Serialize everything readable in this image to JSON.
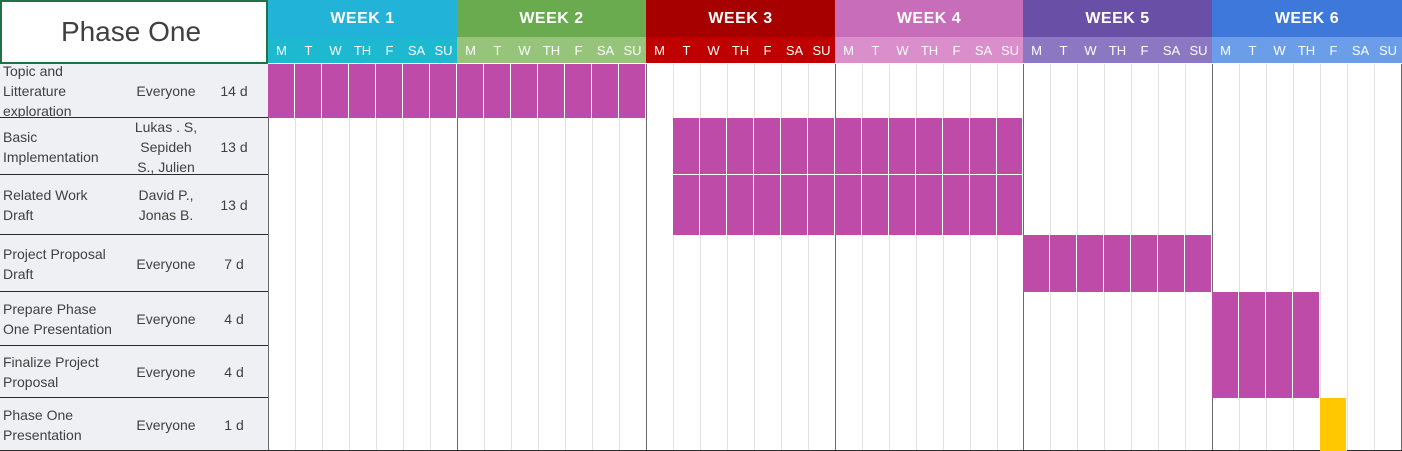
{
  "title": "Phase One",
  "colors": {
    "bar": "#BE4BA7",
    "milestone": "#FFC800",
    "panel_bg": "#EEF0F3",
    "border": "#2B2B2B"
  },
  "weeks": [
    {
      "label": "WEEK 1",
      "color": "#22B4D8",
      "day_color": "#1EB9D0"
    },
    {
      "label": "WEEK 2",
      "color": "#6AAB4F",
      "day_color": "#95C47A"
    },
    {
      "label": "WEEK 3",
      "color": "#A60000",
      "day_color": "#C00000"
    },
    {
      "label": "WEEK 4",
      "color": "#C86DBA",
      "day_color": "#DA8FCC"
    },
    {
      "label": "WEEK 5",
      "color": "#6A4FA6",
      "day_color": "#8C78C2"
    },
    {
      "label": "WEEK 6",
      "color": "#3D78DA",
      "day_color": "#6B9DE8"
    }
  ],
  "days": [
    "M",
    "T",
    "W",
    "TH",
    "F",
    "SA",
    "SU"
  ],
  "tasks": [
    {
      "name": "  Topic and\nLitterature\nexploration",
      "assignee": "Everyone",
      "duration": "14 d",
      "start_day": 1,
      "days": 14,
      "type": "bar"
    },
    {
      "name": "Basic\nImplementation",
      "assignee": "Lukas . S,\nSepideh\nS., Julien",
      "duration": "13 d",
      "start_day": 16,
      "days": 13,
      "type": "bar"
    },
    {
      "name": "Related Work\nDraft",
      "assignee": "David P.,\nJonas B.",
      "duration": "13 d",
      "start_day": 16,
      "days": 13,
      "type": "bar"
    },
    {
      "name": " Project Proposal\nDraft",
      "assignee": "Everyone",
      "duration": "7 d",
      "start_day": 29,
      "days": 7,
      "type": "bar"
    },
    {
      "name": "  Prepare Phase\nOne Presentation",
      "assignee": "Everyone",
      "duration": "4 d",
      "start_day": 36,
      "days": 4,
      "type": "bar"
    },
    {
      "name": "Finalize Project\nProposal",
      "assignee": "Everyone",
      "duration": "4 d",
      "start_day": 36,
      "days": 4,
      "type": "bar"
    },
    {
      "name": "  Phase One\nPresentation",
      "assignee": "Everyone",
      "duration": "1 d",
      "start_day": 40,
      "days": 1,
      "type": "milestone"
    }
  ]
}
